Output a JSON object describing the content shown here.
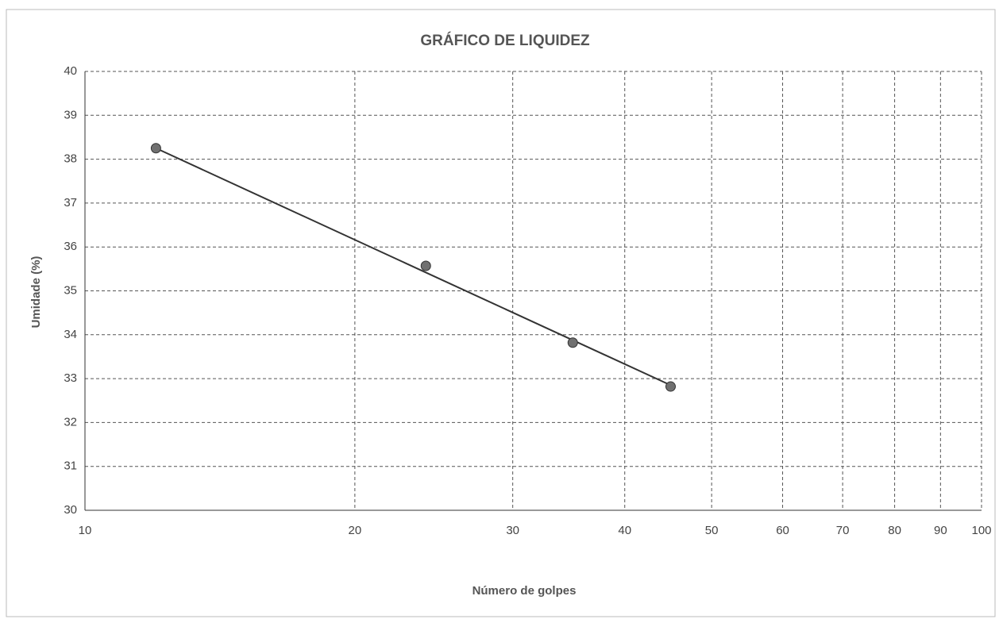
{
  "chart_data": {
    "type": "scatter",
    "title": "GRÁFICO DE LIQUIDEZ",
    "xlabel": "Número de golpes",
    "ylabel": "Umidade (%)",
    "x": [
      12,
      24,
      35,
      45
    ],
    "values": [
      38.25,
      35.57,
      33.82,
      32.82
    ],
    "color": "#707070",
    "trendline": {
      "x": [
        12,
        45
      ],
      "values": [
        38.25,
        32.85
      ],
      "color": "#333333"
    },
    "xscale": "log",
    "xlim": [
      10,
      100
    ],
    "xticks": [
      10,
      20,
      30,
      40,
      50,
      60,
      70,
      80,
      90,
      100
    ],
    "ylim": [
      30,
      40
    ],
    "yticks": [
      30,
      31,
      32,
      33,
      34,
      35,
      36,
      37,
      38,
      39,
      40
    ],
    "grid": true
  }
}
